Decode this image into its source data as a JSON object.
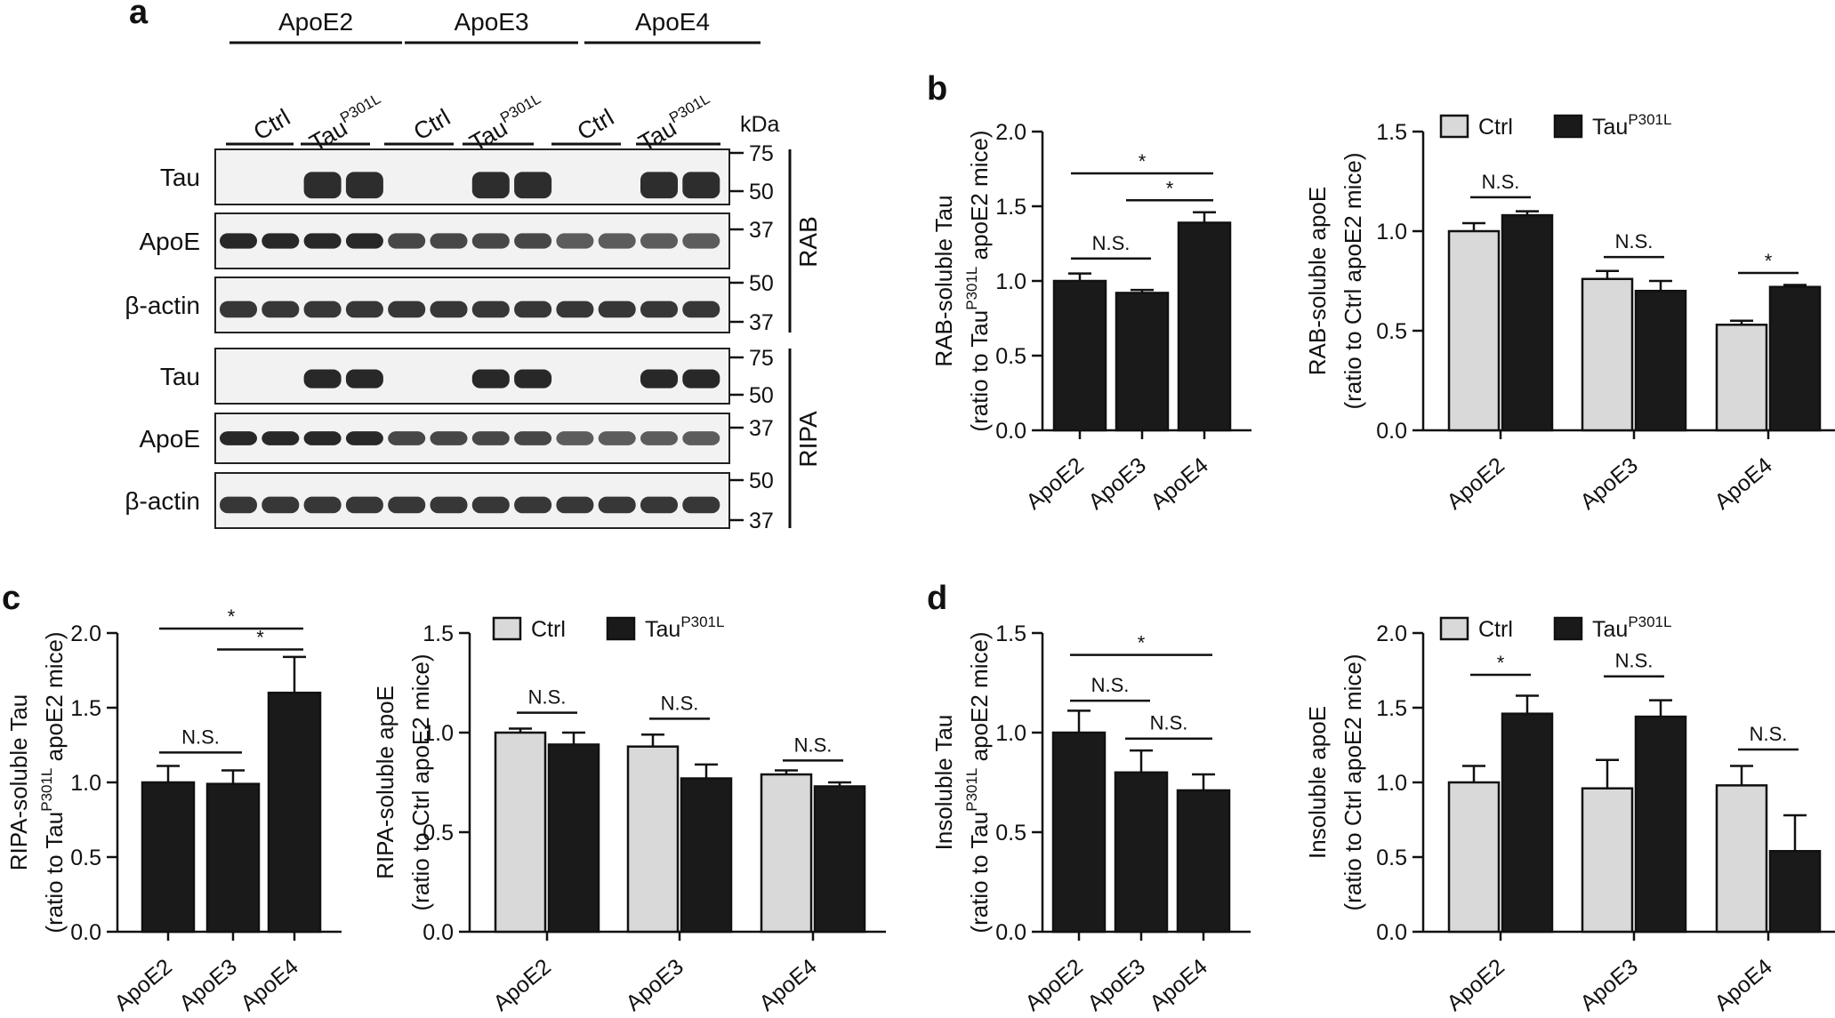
{
  "colors": {
    "tau_bar": "#1a1a1a",
    "ctrl_bar": "#d9d9d9",
    "axis": "#111111",
    "blot_bg": "#f2f2f2",
    "band": "#1c1c1c"
  },
  "blot": {
    "letter": "a",
    "groups": [
      "ApoE2",
      "ApoE3",
      "ApoE4"
    ],
    "lanes": [
      "Ctrl",
      "Tau",
      "Ctrl",
      "Tau",
      "Ctrl",
      "Tau"
    ],
    "lane_sup": "P301L",
    "kda_label": "kDa",
    "fractions": [
      "RAB",
      "RIPA"
    ],
    "rows": [
      {
        "label": "Tau",
        "markers": [
          "75",
          "50"
        ],
        "pattern": "tau_rab"
      },
      {
        "label": "ApoE",
        "markers": [
          "37"
        ],
        "pattern": "apoe"
      },
      {
        "label": "β-actin",
        "markers": [
          "50",
          "37"
        ],
        "pattern": "actin"
      },
      {
        "label": "Tau",
        "markers": [
          "75",
          "50"
        ],
        "pattern": "tau_ripa"
      },
      {
        "label": "ApoE",
        "markers": [
          "37"
        ],
        "pattern": "apoe"
      },
      {
        "label": "β-actin",
        "markers": [
          "50",
          "37"
        ],
        "pattern": "actin"
      }
    ]
  },
  "chart_data": [
    {
      "id": "b-left",
      "letter": "b",
      "type": "bar",
      "ylabel_line1": "RAB-soluble Tau",
      "ylabel_line2_pre": "(ratio to Tau",
      "ylabel_line2_sup": "P301L",
      "ylabel_line2_post": " apoE2 mice)",
      "ylim": [
        0,
        2.0
      ],
      "yticks": [
        "0.0",
        "0.5",
        "1.0",
        "1.5",
        "2.0"
      ],
      "categories": [
        "ApoE2",
        "ApoE3",
        "ApoE4"
      ],
      "series": [
        {
          "values": [
            1.0,
            0.92,
            1.39
          ],
          "errors": [
            0.05,
            0.02,
            0.07
          ]
        }
      ],
      "significance": [
        {
          "from": 0,
          "to": 1,
          "label": "N.S.",
          "y": 1.15
        },
        {
          "from": 0,
          "to": 2,
          "label": "*",
          "y": 1.72
        },
        {
          "from": 1,
          "to": 2,
          "label": "*",
          "y": 1.54
        }
      ]
    },
    {
      "id": "b-right",
      "type": "bar",
      "ylabel_line1": "RAB-soluble apoE",
      "ylabel_line2": "(ratio to Ctrl apoE2 mice)",
      "ylim": [
        0,
        1.5
      ],
      "yticks": [
        "0.0",
        "0.5",
        "1.0",
        "1.5"
      ],
      "categories": [
        "ApoE2",
        "ApoE3",
        "ApoE4"
      ],
      "legend": {
        "ctrl": "Ctrl",
        "tau": "Tau",
        "tau_sup": "P301L"
      },
      "series": [
        {
          "name": "Ctrl",
          "values": [
            1.0,
            0.76,
            0.53
          ],
          "errors": [
            0.04,
            0.04,
            0.02
          ]
        },
        {
          "name": "Tau",
          "values": [
            1.08,
            0.7,
            0.72
          ],
          "errors": [
            0.02,
            0.05,
            0.01
          ]
        }
      ],
      "significance": [
        {
          "category": 0,
          "label": "N.S.",
          "y": 1.17
        },
        {
          "category": 1,
          "label": "N.S.",
          "y": 0.87
        },
        {
          "category": 2,
          "label": "*",
          "y": 0.79
        }
      ]
    },
    {
      "id": "c-left",
      "letter": "c",
      "type": "bar",
      "ylabel_line1": "RIPA-soluble Tau",
      "ylabel_line2_pre": "(ratio to Tau",
      "ylabel_line2_sup": "P301L",
      "ylabel_line2_post": " apoE2 mice)",
      "ylim": [
        0,
        2.0
      ],
      "yticks": [
        "0.0",
        "0.5",
        "1.0",
        "1.5",
        "2.0"
      ],
      "categories": [
        "ApoE2",
        "ApoE3",
        "ApoE4"
      ],
      "series": [
        {
          "values": [
            1.0,
            0.99,
            1.6
          ],
          "errors": [
            0.11,
            0.09,
            0.24
          ]
        }
      ],
      "significance": [
        {
          "from": 0,
          "to": 1,
          "label": "N.S.",
          "y": 1.2
        },
        {
          "from": 0,
          "to": 2,
          "label": "*",
          "y": 2.03
        },
        {
          "from": 1,
          "to": 2,
          "label": "*",
          "y": 1.89
        }
      ]
    },
    {
      "id": "c-right",
      "type": "bar",
      "ylabel_line1": "RIPA-soluble apoE",
      "ylabel_line2": "(ratio to Ctrl apoE2 mice)",
      "ylim": [
        0,
        1.5
      ],
      "yticks": [
        "0.0",
        "0.5",
        "1.0",
        "1.5"
      ],
      "categories": [
        "ApoE2",
        "ApoE3",
        "ApoE4"
      ],
      "legend": {
        "ctrl": "Ctrl",
        "tau": "Tau",
        "tau_sup": "P301L"
      },
      "series": [
        {
          "name": "Ctrl",
          "values": [
            1.0,
            0.93,
            0.79
          ],
          "errors": [
            0.02,
            0.06,
            0.02
          ]
        },
        {
          "name": "Tau",
          "values": [
            0.94,
            0.77,
            0.73
          ],
          "errors": [
            0.06,
            0.07,
            0.02
          ]
        }
      ],
      "significance": [
        {
          "category": 0,
          "label": "N.S.",
          "y": 1.1
        },
        {
          "category": 1,
          "label": "N.S.",
          "y": 1.07
        },
        {
          "category": 2,
          "label": "N.S.",
          "y": 0.86
        }
      ]
    },
    {
      "id": "d-left",
      "letter": "d",
      "type": "bar",
      "ylabel_line1": "Insoluble Tau",
      "ylabel_line2_pre": "(ratio to Tau",
      "ylabel_line2_sup": "P301L",
      "ylabel_line2_post": " apoE2 mice)",
      "ylim": [
        0,
        1.5
      ],
      "yticks": [
        "0.0",
        "0.5",
        "1.0",
        "1.5"
      ],
      "categories": [
        "ApoE2",
        "ApoE3",
        "ApoE4"
      ],
      "series": [
        {
          "values": [
            1.0,
            0.8,
            0.71
          ],
          "errors": [
            0.11,
            0.11,
            0.08
          ]
        }
      ],
      "significance": [
        {
          "from": 0,
          "to": 1,
          "label": "N.S.",
          "y": 1.16
        },
        {
          "from": 0,
          "to": 2,
          "label": "*",
          "y": 1.39
        },
        {
          "from": 1,
          "to": 2,
          "label": "N.S.",
          "y": 0.97
        }
      ]
    },
    {
      "id": "d-right",
      "type": "bar",
      "ylabel_line1": "Insoluble apoE",
      "ylabel_line2": "(ratio to Ctrl apoE2 mice)",
      "ylim": [
        0,
        2.0
      ],
      "yticks": [
        "0.0",
        "0.5",
        "1.0",
        "1.5",
        "2.0"
      ],
      "categories": [
        "ApoE2",
        "ApoE3",
        "ApoE4"
      ],
      "legend": {
        "ctrl": "Ctrl",
        "tau": "Tau",
        "tau_sup": "P301L"
      },
      "series": [
        {
          "name": "Ctrl",
          "values": [
            1.0,
            0.96,
            0.98
          ],
          "errors": [
            0.11,
            0.19,
            0.13
          ]
        },
        {
          "name": "Tau",
          "values": [
            1.46,
            1.44,
            0.54
          ],
          "errors": [
            0.12,
            0.11,
            0.24
          ]
        }
      ],
      "significance": [
        {
          "category": 0,
          "label": "*",
          "y": 1.72
        },
        {
          "category": 1,
          "label": "N.S.",
          "y": 1.71
        },
        {
          "category": 2,
          "label": "N.S.",
          "y": 1.22
        }
      ]
    }
  ]
}
